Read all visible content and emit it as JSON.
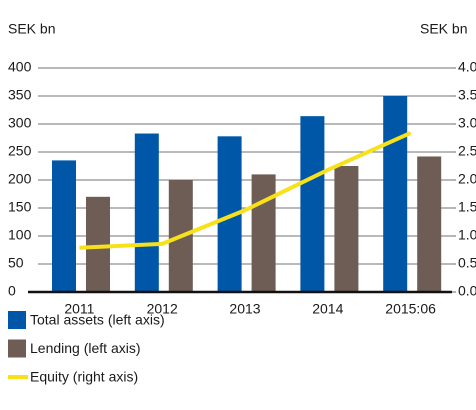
{
  "chart_data": {
    "type": "bar",
    "y_axis_label": "SEK bn",
    "y2_axis_label": "SEK bn",
    "categories": [
      "2011",
      "2012",
      "2013",
      "2014",
      "2015:06"
    ],
    "series": [
      {
        "name": "Total assets (left axis)",
        "color": "#0057a8",
        "type": "bar",
        "values": [
          235,
          283,
          278,
          314,
          350
        ]
      },
      {
        "name": "Lending (left axis)",
        "color": "#6e5d55",
        "type": "bar",
        "values": [
          170,
          200,
          210,
          225,
          242
        ]
      },
      {
        "name": "Equity (right axis)",
        "color": "#f7e11b",
        "type": "line",
        "axis": "y2",
        "values": [
          0.79,
          0.86,
          1.46,
          2.18,
          2.84
        ]
      }
    ],
    "ylim": [
      0,
      400
    ],
    "yticks": [
      0,
      50,
      100,
      150,
      200,
      250,
      300,
      350,
      400
    ],
    "y2lim": [
      0,
      4
    ],
    "y2ticks": [
      {
        "value": 0,
        "label": "0.0"
      },
      {
        "value": 0.5,
        "label": "0.5"
      },
      {
        "value": 1,
        "label": "1.0"
      },
      {
        "value": 1.5,
        "label": "1.5"
      },
      {
        "value": 2,
        "label": "2.0"
      },
      {
        "value": 2.5,
        "label": "2.5"
      },
      {
        "value": 3,
        "label": "3.0"
      },
      {
        "value": 3.5,
        "label": "3.5"
      },
      {
        "value": 4,
        "label": "4.0"
      }
    ],
    "grid": true
  }
}
